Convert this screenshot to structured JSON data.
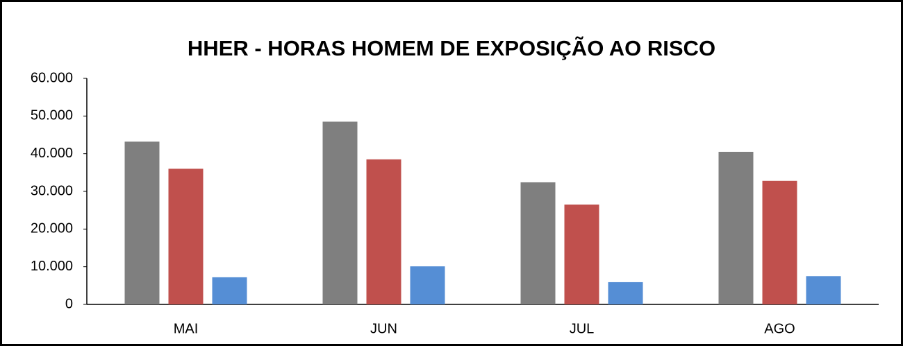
{
  "chart_data": {
    "type": "bar",
    "title": "HHER - HORAS HOMEM DE EXPOSIÇÃO AO RISCO",
    "categories": [
      "MAI",
      "JUN",
      "JUL",
      "AGO"
    ],
    "series": [
      {
        "color": "#7f7f7f",
        "values": [
          43200,
          48500,
          32400,
          40500
        ]
      },
      {
        "color": "#c0504d",
        "values": [
          36000,
          38500,
          26500,
          32800
        ]
      },
      {
        "color": "#558ed5",
        "values": [
          7200,
          10100,
          5900,
          7500
        ]
      }
    ],
    "ylim": [
      0,
      60000
    ],
    "yticks": [
      0,
      {
        "value": 10000,
        "label": "10.000"
      },
      {
        "value": 20000,
        "label": "20.000"
      },
      {
        "value": 30000,
        "label": "30.000"
      },
      {
        "value": 40000,
        "label": "40.000"
      },
      {
        "value": 50000,
        "label": "50.000"
      },
      {
        "value": 60000,
        "label": "60.000"
      }
    ],
    "grid": false
  }
}
